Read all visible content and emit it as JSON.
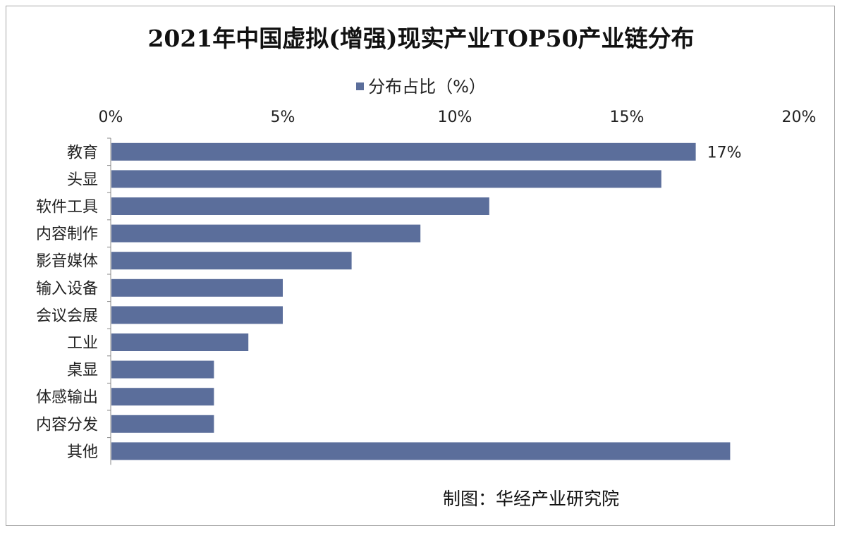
{
  "colors": {
    "bar": "#5b6e9b",
    "frame": "#a6a6a6",
    "text": "#222222"
  },
  "chart_data": {
    "type": "bar",
    "orientation": "horizontal",
    "title": "2021年中国虚拟(增强)现实产业TOP50产业链分布",
    "legend": {
      "label": "分布占比（%）",
      "position": "top"
    },
    "categories": [
      "教育",
      "头显",
      "软件工具",
      "内容制作",
      "影音媒体",
      "输入设备",
      "会议会展",
      "工业",
      "桌显",
      "体感输出",
      "内容分发",
      "其他"
    ],
    "series": [
      {
        "name": "分布占比（%）",
        "values": [
          17,
          16,
          11,
          9,
          7,
          5,
          5,
          4,
          3,
          3,
          3,
          18
        ]
      }
    ],
    "data_labels": [
      {
        "category": "教育",
        "text": "17%"
      }
    ],
    "x_ticks": [
      "0%",
      "5%",
      "10%",
      "15%",
      "20%"
    ],
    "xlim": [
      0,
      20
    ],
    "axis_position": "top",
    "grid": false
  },
  "footer": {
    "source": "制图：华经产业研究院"
  }
}
